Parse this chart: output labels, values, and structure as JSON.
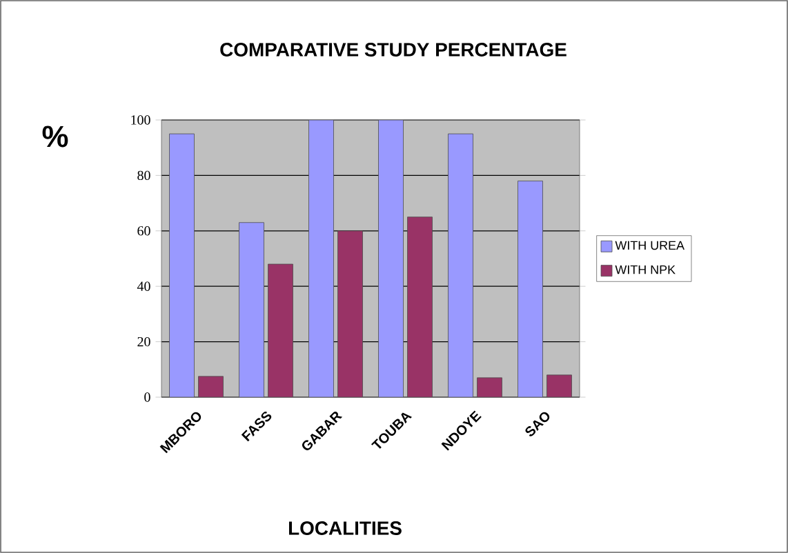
{
  "chart_data": {
    "type": "bar",
    "title": "COMPARATIVE STUDY PERCENTAGE",
    "xlabel": "LOCALITIES",
    "ylabel": "%",
    "categories": [
      "MBORO",
      "FASS",
      "GABAR",
      "TOUBA",
      "NDOYE",
      "SAO"
    ],
    "series": [
      {
        "name": "WITH UREA",
        "color": "#9999ff",
        "values": [
          95,
          63,
          100,
          100,
          95,
          78
        ]
      },
      {
        "name": "WITH NPK",
        "color": "#993366",
        "values": [
          7.5,
          48,
          60,
          65,
          7,
          8
        ]
      }
    ],
    "ylim": [
      0,
      100
    ],
    "yticks": [
      0,
      20,
      40,
      60,
      80,
      100
    ],
    "grid": "y",
    "legend": "right"
  }
}
